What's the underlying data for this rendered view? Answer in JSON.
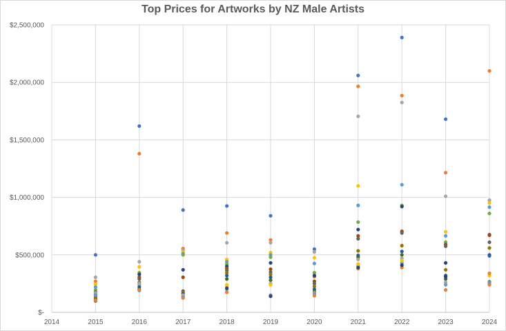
{
  "chart_data": {
    "type": "scatter",
    "title": "Top Prices for Artworks by NZ Male Artists",
    "xlabel": "",
    "ylabel": "",
    "xlim": [
      2014,
      2024
    ],
    "ylim": [
      0,
      2500000
    ],
    "x_ticks": [
      "2014",
      "2015",
      "2016",
      "2017",
      "2018",
      "2019",
      "2020",
      "2021",
      "2022",
      "2023",
      "2024"
    ],
    "y_ticks": [
      "$-",
      "$500,000",
      "$1,000,000",
      "$1,500,000",
      "$2,000,000",
      "$2,500,000"
    ],
    "grid": true,
    "legend": "none",
    "colors": [
      "#4472c4",
      "#ed7d31",
      "#a5a5a5",
      "#ffc000",
      "#5b9bd5",
      "#70ad47",
      "#264478",
      "#9e480e",
      "#636363",
      "#997300",
      "#255e91",
      "#43682b"
    ],
    "series": [
      {
        "color": "#4472c4",
        "x": [
          2015,
          2016,
          2017,
          2018,
          2019,
          2020,
          2021,
          2022,
          2023,
          2024
        ],
        "y": [
          500000,
          1620000,
          890000,
          925000,
          840000,
          550000,
          2060000,
          2390000,
          1680000,
          490000
        ]
      },
      {
        "color": "#ed7d31",
        "x": [
          2015,
          2016,
          2017,
          2018,
          2019,
          2020,
          2021,
          2022,
          2023,
          2024
        ],
        "y": [
          270000,
          1380000,
          555000,
          690000,
          630000,
          310000,
          1965000,
          1885000,
          1215000,
          2100000
        ]
      },
      {
        "color": "#a5a5a5",
        "x": [
          2015,
          2016,
          2017,
          2018,
          2019,
          2020,
          2021,
          2022,
          2023,
          2024
        ],
        "y": [
          305000,
          440000,
          540000,
          605000,
          605000,
          525000,
          1705000,
          1825000,
          1010000,
          975000
        ]
      },
      {
        "color": "#ffc000",
        "x": [
          2015,
          2016,
          2017,
          2018,
          2019,
          2020,
          2021,
          2022,
          2023,
          2024
        ],
        "y": [
          245000,
          395000,
          525000,
          460000,
          520000,
          475000,
          1100000,
          925000,
          700000,
          950000
        ]
      },
      {
        "color": "#5b9bd5",
        "x": [
          2015,
          2016,
          2017,
          2018,
          2019,
          2020,
          2021,
          2022,
          2023,
          2024
        ],
        "y": [
          220000,
          240000,
          510000,
          440000,
          500000,
          425000,
          930000,
          1110000,
          665000,
          915000
        ]
      },
      {
        "color": "#70ad47",
        "x": [
          2015,
          2016,
          2017,
          2018,
          2019,
          2020,
          2021,
          2022,
          2023,
          2024
        ],
        "y": [
          195000,
          345000,
          500000,
          420000,
          480000,
          345000,
          785000,
          930000,
          610000,
          860000
        ]
      },
      {
        "color": "#264478",
        "x": [
          2015,
          2016,
          2017,
          2018,
          2019,
          2020,
          2021,
          2022,
          2023,
          2024
        ],
        "y": [
          175000,
          330000,
          370000,
          400000,
          430000,
          320000,
          720000,
          920000,
          430000,
          675000
        ]
      },
      {
        "color": "#9e480e",
        "x": [
          2015,
          2016,
          2017,
          2018,
          2019,
          2020,
          2021,
          2022,
          2023,
          2024
        ],
        "y": [
          155000,
          305000,
          305000,
          380000,
          375000,
          270000,
          665000,
          705000,
          590000,
          670000
        ]
      },
      {
        "color": "#636363",
        "x": [
          2015,
          2016,
          2017,
          2018,
          2019,
          2020,
          2021,
          2022,
          2023,
          2024
        ],
        "y": [
          140000,
          290000,
          185000,
          365000,
          350000,
          250000,
          640000,
          690000,
          575000,
          610000
        ]
      },
      {
        "color": "#997300",
        "x": [
          2015,
          2016,
          2017,
          2018,
          2019,
          2020,
          2021,
          2022,
          2023,
          2024
        ],
        "y": [
          125000,
          260000,
          170000,
          345000,
          330000,
          225000,
          535000,
          580000,
          370000,
          560000
        ]
      },
      {
        "color": "#255e91",
        "x": [
          2015,
          2016,
          2017,
          2018,
          2019,
          2020,
          2021,
          2022,
          2023,
          2024
        ],
        "y": [
          110000,
          220000,
          160000,
          320000,
          305000,
          200000,
          495000,
          530000,
          320000,
          500000
        ]
      },
      {
        "color": "#43682b",
        "x": [
          2015,
          2016,
          2017,
          2018,
          2019,
          2020,
          2021,
          2022,
          2023,
          2024
        ],
        "y": [
          100000,
          200000,
          140000,
          290000,
          280000,
          180000,
          480000,
          500000,
          290000,
          265000
        ]
      },
      {
        "color": "#a5a5a5",
        "x": [
          2015,
          2016,
          2017,
          2018,
          2019,
          2020,
          2021,
          2022,
          2023,
          2024
        ],
        "y": [
          170000,
          250000,
          150000,
          230000,
          250000,
          170000,
          460000,
          470000,
          260000,
          250000
        ]
      },
      {
        "color": "#5b9bd5",
        "x": [
          2015,
          2016,
          2017,
          2018,
          2019,
          2020,
          2021,
          2022,
          2023,
          2024
        ],
        "y": [
          150000,
          190000,
          130000,
          200000,
          150000,
          160000,
          405000,
          430000,
          240000,
          260000
        ]
      },
      {
        "color": "#ed7d31",
        "x": [
          2015,
          2016,
          2017,
          2018,
          2019,
          2020,
          2021,
          2022,
          2023,
          2024
        ],
        "y": [
          105000,
          195000,
          125000,
          175000,
          140000,
          145000,
          380000,
          390000,
          195000,
          240000
        ]
      },
      {
        "color": "#264478",
        "x": [
          2018,
          2019,
          2021,
          2022,
          2023
        ],
        "y": [
          210000,
          140000,
          390000,
          410000,
          310000
        ]
      },
      {
        "color": "#ffc000",
        "x": [
          2018,
          2019,
          2021,
          2022,
          2024
        ],
        "y": [
          240000,
          240000,
          420000,
          450000,
          320000
        ]
      },
      {
        "color": "#ed7d31",
        "x": [
          2024
        ],
        "y": [
          340000
        ]
      }
    ]
  }
}
